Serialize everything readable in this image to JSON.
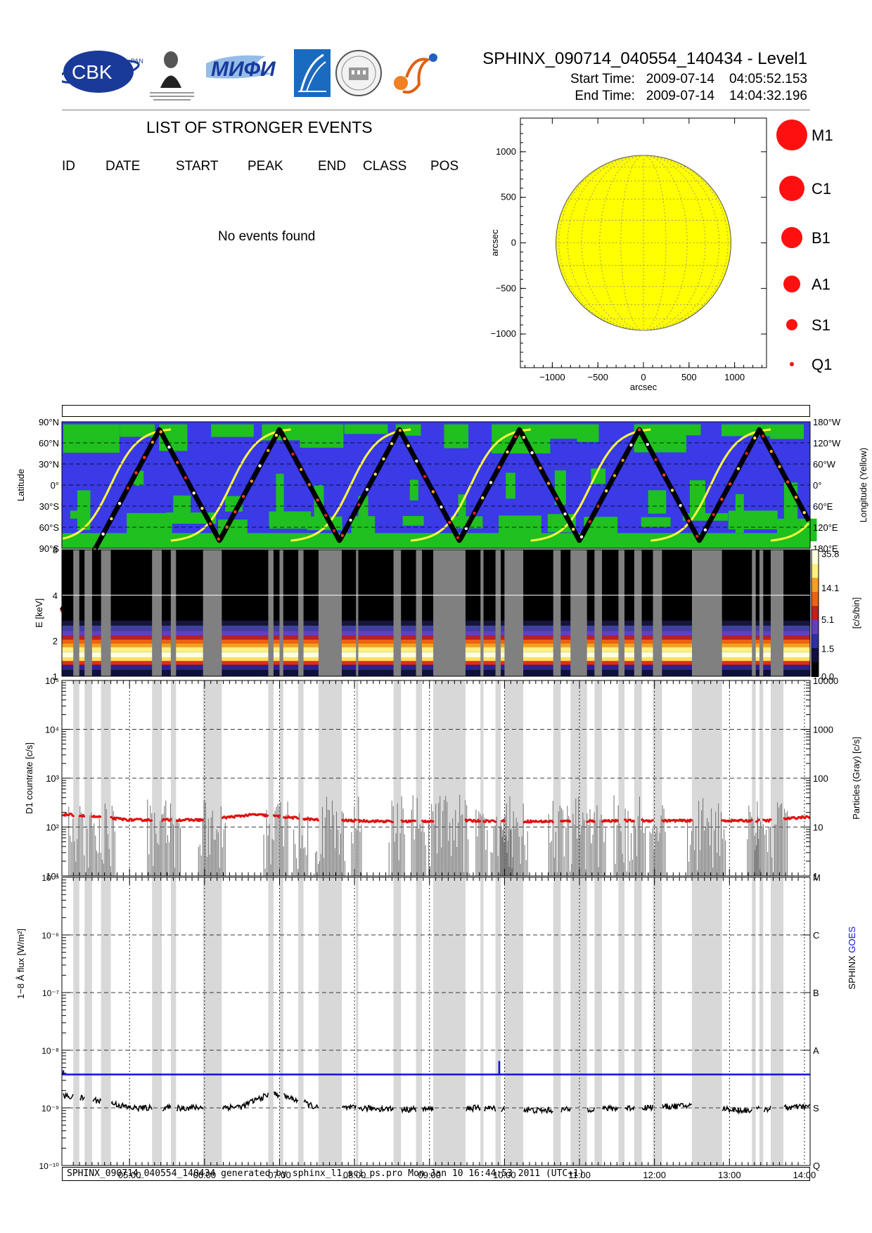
{
  "header": {
    "title": "SPHINX_090714_040554_140434 - Level1",
    "start_label": "Start Time:",
    "start_date": "2009-07-14",
    "start_time": "04:05:52.153",
    "end_label": "End Time:",
    "end_date": "2009-07-14",
    "end_time": "14:04:32.196"
  },
  "logos": {
    "cbk": "CBK",
    "cbk_sub": "PAN",
    "lebedev": "P.N.Lebedev Physical Institute of the Russian Academy of Science",
    "mifi": "МИФИ",
    "icon_names": [
      "cbk-logo",
      "lebedev-portrait-logo",
      "mifi-logo",
      "rocket-logo",
      "seal-logo",
      "sun-logo"
    ]
  },
  "events": {
    "title": "LIST OF STRONGER EVENTS",
    "columns": [
      "ID",
      "DATE",
      "START",
      "PEAK",
      "END",
      "CLASS",
      "POS"
    ],
    "message": "No events found"
  },
  "sun_map": {
    "xlabel": "arcsec",
    "ylabel": "arcsec",
    "xticks": [
      "−1000",
      "−500",
      "0",
      "500",
      "1000"
    ],
    "yticks": [
      "1000",
      "500",
      "0",
      "−500",
      "−1000"
    ],
    "disk_color": "#ffff00"
  },
  "class_legend": [
    {
      "label": "M1",
      "r": 22
    },
    {
      "label": "C1",
      "r": 18
    },
    {
      "label": "B1",
      "r": 15
    },
    {
      "label": "A1",
      "r": 12
    },
    {
      "label": "S1",
      "r": 8
    },
    {
      "label": "Q1",
      "r": 3
    }
  ],
  "time_ticks": [
    "05:00",
    "06:00",
    "07:00",
    "08:00",
    "09:00",
    "10:00",
    "11:00",
    "12:00",
    "13:00",
    "14:00"
  ],
  "gaps": [
    [
      4.25,
      4.33
    ],
    [
      4.4,
      4.5
    ],
    [
      4.62,
      4.75
    ],
    [
      5.3,
      5.43
    ],
    [
      5.55,
      5.62
    ],
    [
      5.98,
      6.23
    ],
    [
      6.85,
      6.92
    ],
    [
      7.0,
      7.05
    ],
    [
      7.25,
      7.32
    ],
    [
      7.52,
      7.83
    ],
    [
      8.02,
      8.05
    ],
    [
      8.52,
      8.62
    ],
    [
      8.82,
      8.9
    ],
    [
      9.05,
      9.48
    ],
    [
      9.68,
      9.72
    ],
    [
      9.88,
      9.95
    ],
    [
      10.0,
      10.05
    ],
    [
      10.03,
      10.25
    ],
    [
      10.65,
      10.75
    ],
    [
      10.88,
      11.1
    ],
    [
      11.2,
      11.3
    ],
    [
      11.52,
      11.6
    ],
    [
      11.73,
      11.83
    ],
    [
      11.98,
      12.1
    ],
    [
      12.5,
      12.9
    ],
    [
      13.3,
      13.35
    ],
    [
      13.4,
      13.45
    ],
    [
      13.55,
      13.72
    ]
  ],
  "orbit_panel": {
    "ylabel_left": "Latitude",
    "ylabel_right": "Longitude (Yellow)",
    "yticks_left": [
      "90°N",
      "60°N",
      "30°N",
      "0°",
      "30°S",
      "60°S",
      "90°S"
    ],
    "yticks_right": [
      "180°W",
      "120°W",
      "60°W",
      "0°",
      "60°E",
      "120°E",
      "180°E"
    ],
    "ocean_color": "#3a3ae6",
    "land_color": "#1fc01f",
    "track_color": "#000000",
    "longitude_color": "#ffff40"
  },
  "spectrum_panel": {
    "ylabel": "E [keV]",
    "yticks": [
      "1",
      "2",
      "4",
      "8"
    ],
    "colorbar_label": "[c/s/bin]",
    "colorbar_ticks": [
      "0.0",
      "1.5",
      "5.1",
      "14.1",
      "35.8"
    ]
  },
  "countrate_panel": {
    "ylabel_left": "D1 countrate [c/s]",
    "ylabel_right": "Particles (Gray) [c/s]",
    "yticks_left": [
      "10¹",
      "10²",
      "10³",
      "10⁴",
      "10⁵"
    ],
    "yticks_right": [
      "1",
      "10",
      "100",
      "1000",
      "10000"
    ],
    "series_color": "#e01010",
    "particles_color": "#707070"
  },
  "flux_panel": {
    "ylabel": "1−8 Å flux [W/m²]",
    "yticks_left": [
      "10⁻¹⁰",
      "10⁻⁹",
      "10⁻⁸",
      "10⁻⁷",
      "10⁻⁶",
      "10⁻⁵"
    ],
    "classes_right": [
      "Q",
      "S",
      "A",
      "B",
      "C",
      "M"
    ],
    "legend_sphinx": "SPHINX",
    "legend_goes": "GOES",
    "sphinx_color": "#000000",
    "goes_color": "#1010e0"
  },
  "chart_data": {
    "type": "line",
    "x_range": [
      "04:05:52",
      "14:04:32"
    ],
    "series": [
      {
        "name": "SPHINX",
        "unit": "W/m²",
        "x": [
          "04:10",
          "04:40",
          "05:00",
          "05:40",
          "06:30",
          "06:55",
          "07:30",
          "08:00",
          "08:40",
          "09:00",
          "09:40",
          "10:30",
          "11:00",
          "11:40",
          "12:30",
          "13:10",
          "13:40",
          "14:00"
        ],
        "values": [
          1.6e-09,
          1.3e-09,
          1e-09,
          1e-09,
          1.05e-09,
          1.8e-09,
          1e-09,
          1e-09,
          9.5e-10,
          9.5e-10,
          1e-09,
          9e-10,
          9.5e-10,
          1e-09,
          1.1e-09,
          9e-10,
          1e-09,
          1.05e-09
        ]
      },
      {
        "name": "GOES",
        "unit": "W/m²",
        "x": [
          "04:05",
          "09:55",
          "14:04"
        ],
        "values": [
          3.8e-09,
          3.8e-09,
          3.8e-09
        ]
      },
      {
        "name": "D1 countrate",
        "unit": "c/s",
        "x": [
          "04:10",
          "05:00",
          "06:00",
          "06:40",
          "07:30",
          "08:30",
          "09:30",
          "10:30",
          "11:30",
          "12:30",
          "13:30",
          "14:00"
        ],
        "values": [
          180,
          140,
          140,
          180,
          140,
          130,
          135,
          130,
          135,
          135,
          135,
          160
        ]
      }
    ],
    "ylim_flux": [
      1e-10,
      1e-05
    ],
    "ylim_countrate": [
      10,
      100000
    ],
    "yscale": "log"
  },
  "footer": {
    "text": "SPHINX_090714_040554_140434 generated by sphinx_l1_sci_ps.pro Mon Jan 10 16:44:53 2011 (UTC+1)"
  }
}
